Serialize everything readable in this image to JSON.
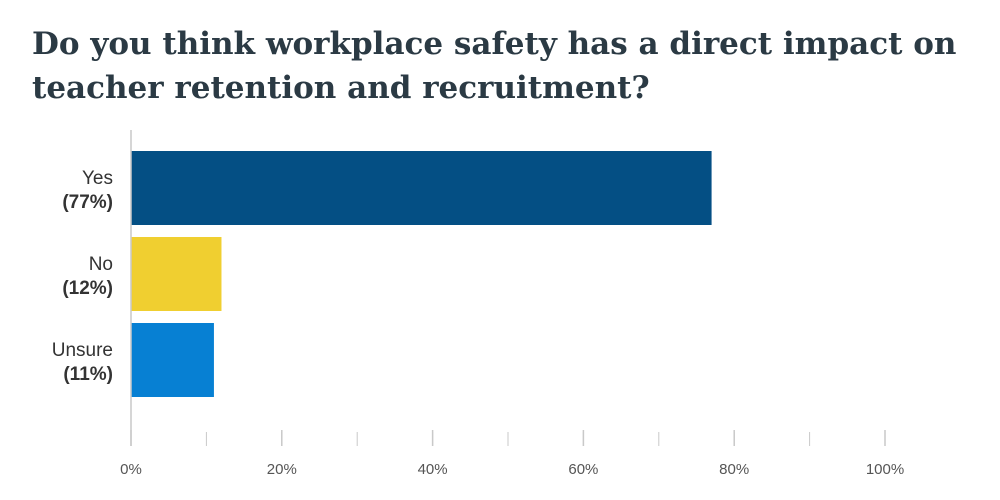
{
  "chart_data": {
    "type": "bar",
    "orientation": "horizontal",
    "title": "Do you think workplace safety has a direct impact on teacher retention and recruitment?",
    "categories": [
      "Yes",
      "No",
      "Unsure"
    ],
    "category_pct_labels": [
      "(77%)",
      "(12%)",
      "(11%)"
    ],
    "values": [
      77,
      12,
      11
    ],
    "bar_colors": [
      "#044f84",
      "#f0cf30",
      "#0780d3"
    ],
    "xlim": [
      0,
      100
    ],
    "xticks": [
      0,
      20,
      40,
      60,
      80,
      100
    ],
    "xtick_labels": [
      "0%",
      "20%",
      "40%",
      "60%",
      "80%",
      "100%"
    ],
    "minor_tick_step": 10,
    "xlabel": "",
    "ylabel": "",
    "grid": false,
    "axis_color": "#c9c9c9"
  }
}
